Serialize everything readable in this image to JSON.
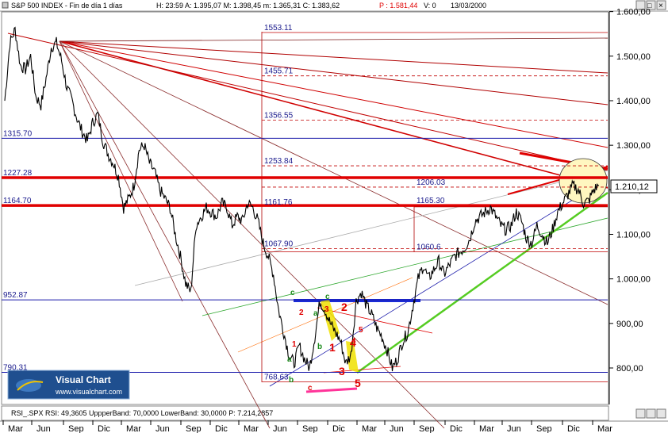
{
  "header": {
    "instrument": "S&P 500 INDEX - Fin de día 1 días",
    "quote": "H: 23:59   A: 1.395,07   M: 1.398,45   m: 1.365,31   C: 1.383,62",
    "p_value": "P : 1.581,44",
    "v_value": "V: 0",
    "date": "13/03/2000"
  },
  "window_buttons": {
    "min": "_",
    "max": "□",
    "close": "×"
  },
  "indicator_bar": {
    "label": "RSI_.SPX   RSI: 49,3605   UppperBand: 70,0000   LowerBand: 30,0000   P: 7.214,2857"
  },
  "logo": {
    "name": "Visual Chart",
    "url": "www.visualchart.com"
  },
  "current_price_label": "1.210,12",
  "chart_data": {
    "type": "line",
    "title": "S&P 500 INDEX",
    "ylim": [
      740,
      1600
    ],
    "y_ticks": [
      {
        "value": 800,
        "label": "800,00"
      },
      {
        "value": 900,
        "label": "900,00"
      },
      {
        "value": 1000,
        "label": "1.000,00"
      },
      {
        "value": 1100,
        "label": "1.100,00"
      },
      {
        "value": 1200,
        "label": "1.200,00"
      },
      {
        "value": 1300,
        "label": "1.300,00"
      },
      {
        "value": 1400,
        "label": "1.400,00"
      },
      {
        "value": 1500,
        "label": "1.500,00"
      },
      {
        "value": 1600,
        "label": "1.600,00"
      }
    ],
    "x_ticks": [
      "Mar",
      "Jun",
      "Sep",
      "Dic",
      "Mar",
      "Jun",
      "Sep",
      "Dic",
      "Mar",
      "Jun",
      "Sep",
      "Dic",
      "Mar",
      "Jun",
      "Sep",
      "Dic",
      "Mar",
      "Jun",
      "Sep",
      "Dic",
      "Mar"
    ],
    "series": [
      {
        "values": [
          1400,
          1530,
          1560,
          1480,
          1470,
          1500,
          1410,
          1390,
          1450,
          1520,
          1530,
          1490,
          1430,
          1400,
          1360,
          1330,
          1310,
          1350,
          1370,
          1310,
          1280,
          1260,
          1230,
          1160,
          1180,
          1210,
          1290,
          1300,
          1260,
          1240,
          1200,
          1180,
          1160,
          1100,
          1050,
          990,
          970,
          1120,
          1140,
          1160,
          1150,
          1140,
          1170,
          1160,
          1120,
          1140,
          1130,
          1170,
          1160,
          1130,
          1080,
          1050,
          1010,
          930,
          880,
          830,
          810,
          850,
          820,
          800,
          870,
          950,
          930,
          900,
          880,
          860,
          810,
          830,
          950,
          970,
          940,
          920,
          890,
          870,
          840,
          800,
          820,
          860,
          880,
          940,
          1000,
          1030,
          1000,
          1020,
          1040,
          1010,
          1030,
          1050,
          1060,
          1070,
          1090,
          1130,
          1140,
          1150,
          1160,
          1140,
          1120,
          1110,
          1120,
          1150,
          1130,
          1090,
          1080,
          1120,
          1100,
          1080,
          1110,
          1150,
          1170,
          1190,
          1210,
          1200,
          1170,
          1175,
          1200,
          1210
        ]
      }
    ],
    "levels": [
      {
        "label": "1553.11",
        "value": 1553.11,
        "style": "solid"
      },
      {
        "label": "1455.71",
        "value": 1455.71,
        "style": "dashed"
      },
      {
        "label": "1356.55",
        "value": 1356.55,
        "style": "dashed"
      },
      {
        "label": "1315.70",
        "value": 1315.7,
        "style": "solid-blue"
      },
      {
        "label": "1253.84",
        "value": 1253.84,
        "style": "dashed"
      },
      {
        "label": "1227.28",
        "value": 1227.28,
        "style": "thick"
      },
      {
        "label": "1206.03",
        "value": 1206.03,
        "style": "dashed"
      },
      {
        "label": "1165.30",
        "value": 1165.3,
        "style": "thin"
      },
      {
        "label": "1164.70",
        "value": 1164.7,
        "style": "thick"
      },
      {
        "label": "1161.76",
        "value": 1161.76,
        "style": "thin"
      },
      {
        "label": "1067.90",
        "value": 1067.9,
        "style": "dashed"
      },
      {
        "label": "1060.6",
        "value": 1060.6,
        "style": "solid"
      },
      {
        "label": "952.87",
        "value": 952.87,
        "style": "solid-blue"
      },
      {
        "label": "790.31",
        "value": 790.31,
        "style": "solid-blue"
      },
      {
        "label": "768.63",
        "value": 768.63,
        "style": "solid"
      }
    ],
    "wave_labels": [
      "1",
      "2",
      "3",
      "4",
      "5",
      "a",
      "b",
      "c",
      "a",
      "b",
      "c",
      "1",
      "2",
      "3",
      "4",
      "5",
      "c"
    ]
  }
}
